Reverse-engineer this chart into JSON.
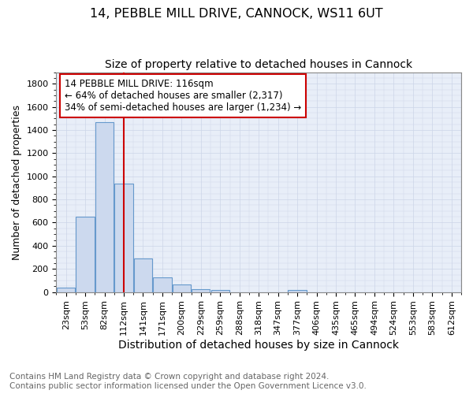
{
  "title1": "14, PEBBLE MILL DRIVE, CANNOCK, WS11 6UT",
  "title2": "Size of property relative to detached houses in Cannock",
  "xlabel": "Distribution of detached houses by size in Cannock",
  "ylabel": "Number of detached properties",
  "bins": [
    "23sqm",
    "53sqm",
    "82sqm",
    "112sqm",
    "141sqm",
    "171sqm",
    "200sqm",
    "229sqm",
    "259sqm",
    "288sqm",
    "318sqm",
    "347sqm",
    "377sqm",
    "406sqm",
    "435sqm",
    "465sqm",
    "494sqm",
    "524sqm",
    "553sqm",
    "583sqm",
    "612sqm"
  ],
  "values": [
    38,
    650,
    1470,
    940,
    290,
    130,
    65,
    25,
    20,
    0,
    0,
    0,
    15,
    0,
    0,
    0,
    0,
    0,
    0,
    0,
    0
  ],
  "bar_color": "#ccd9ee",
  "bar_edge_color": "#6699cc",
  "vline_x": 3.0,
  "vline_color": "#cc0000",
  "annotation_text": "14 PEBBLE MILL DRIVE: 116sqm\n← 64% of detached houses are smaller (2,317)\n34% of semi-detached houses are larger (1,234) →",
  "annotation_box_color": "#cc0000",
  "ylim": [
    0,
    1900
  ],
  "yticks": [
    0,
    200,
    400,
    600,
    800,
    1000,
    1200,
    1400,
    1600,
    1800
  ],
  "grid_color": "#ccd5e8",
  "bg_color": "#e8eef8",
  "footnote": "Contains HM Land Registry data © Crown copyright and database right 2024.\nContains public sector information licensed under the Open Government Licence v3.0.",
  "title1_fontsize": 11.5,
  "title2_fontsize": 10,
  "xlabel_fontsize": 10,
  "ylabel_fontsize": 9,
  "tick_fontsize": 8,
  "footnote_fontsize": 7.5,
  "annot_fontsize": 8.5
}
